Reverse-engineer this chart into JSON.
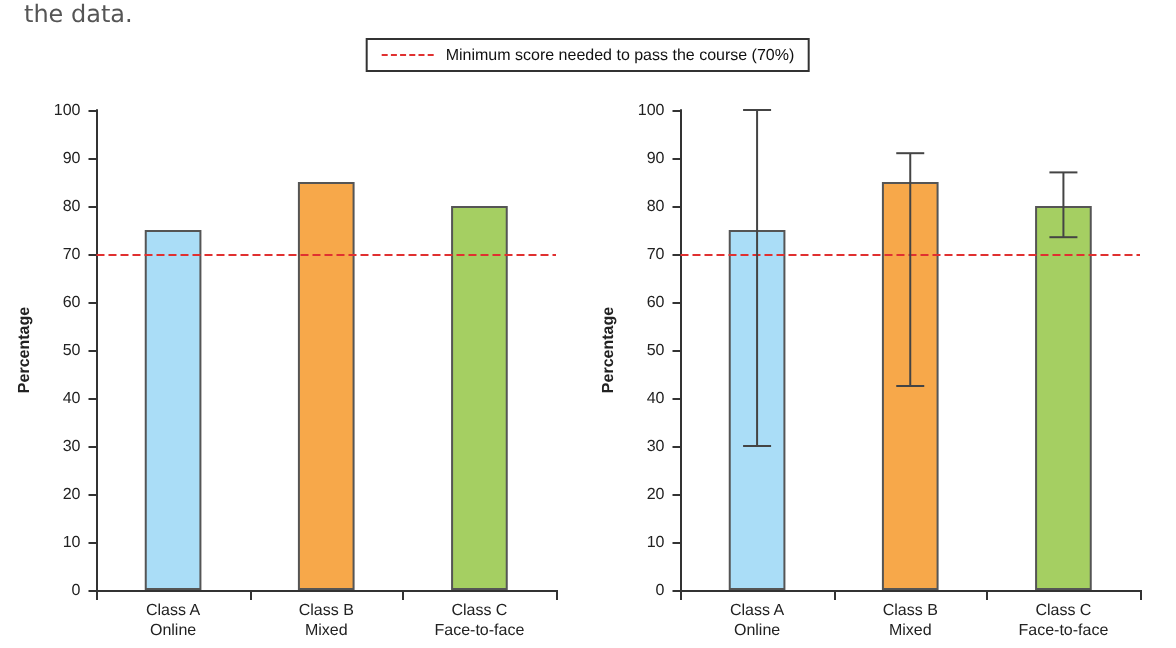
{
  "chart_data": [
    {
      "type": "bar",
      "annotations": [
        "the data."
      ],
      "ylabel": "Percentage",
      "categories": [
        "Class A\nOnline",
        "Class B\nMixed",
        "Class C\nFace-to-face"
      ],
      "values": [
        75,
        85,
        80
      ],
      "colors": [
        "#aaddf7",
        "#f7a84a",
        "#a5cf62"
      ],
      "ylim": [
        0,
        100
      ],
      "yticks": [
        0,
        10,
        20,
        30,
        40,
        50,
        60,
        70,
        80,
        90,
        100
      ],
      "grid": false,
      "legend": "top",
      "ref_lines": [
        {
          "axis": "y",
          "value": 70,
          "label": "Minimum score needed to pass the course (70%)",
          "color": "#e03030",
          "line_style": "dashed"
        }
      ]
    },
    {
      "type": "bar",
      "ylabel": "Percentage",
      "categories": [
        "Class A\nOnline",
        "Class B\nMixed",
        "Class C\nFace-to-face"
      ],
      "values": [
        75,
        85,
        80
      ],
      "colors": [
        "#aaddf7",
        "#f7a84a",
        "#a5cf62"
      ],
      "errors": [
        [
          30,
          100
        ],
        [
          42.5,
          91
        ],
        [
          73.5,
          87
        ]
      ],
      "ylim": [
        0,
        100
      ],
      "yticks": [
        0,
        10,
        20,
        30,
        40,
        50,
        60,
        70,
        80,
        90,
        100
      ],
      "grid": false,
      "ref_lines": [
        {
          "axis": "y",
          "value": 70,
          "color": "#e03030",
          "line_style": "dashed"
        }
      ]
    }
  ]
}
